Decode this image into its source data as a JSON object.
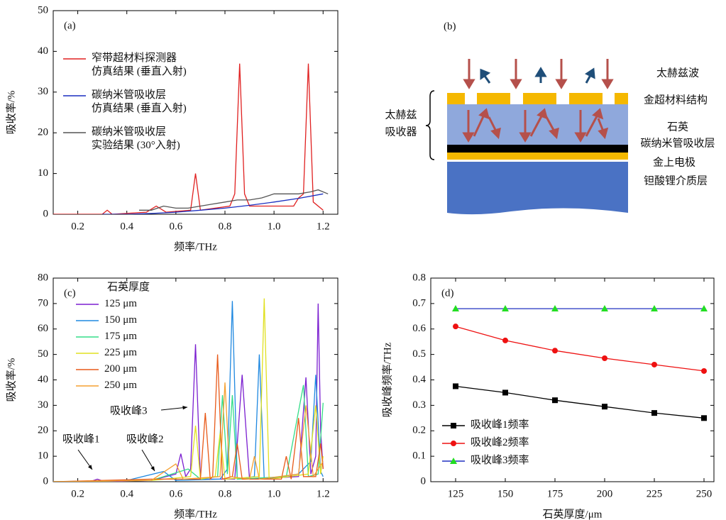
{
  "chart_data": [
    {
      "type": "line",
      "label": "(a)",
      "x_label": "频率/THz",
      "y_label": "吸收率/%",
      "xlim": [
        0.1,
        1.26
      ],
      "ylim": [
        0,
        50
      ],
      "xticks": [
        0.2,
        0.4,
        0.6,
        0.8,
        {
          "value": 1,
          "label": "1.0"
        },
        1.2
      ],
      "yticks": [
        0,
        10,
        20,
        30,
        40,
        50
      ],
      "legend": "upper left",
      "series": [
        {
          "name": "窄带超材料探测器\n仿真结果 (垂直入射)",
          "color": "#e02020",
          "x": [
            0.1,
            0.3,
            0.32,
            0.34,
            0.48,
            0.52,
            0.56,
            0.66,
            0.68,
            0.7,
            0.82,
            0.84,
            0.86,
            0.88,
            0.9,
            1.08,
            1.1,
            1.12,
            1.14,
            1.16,
            1.2
          ],
          "values": [
            0,
            0,
            1,
            0,
            0.5,
            2,
            0.5,
            1,
            10,
            1,
            2,
            5,
            37,
            5,
            2,
            2,
            4,
            5,
            37,
            3,
            1
          ]
        },
        {
          "name": "碳纳米管吸收层\n仿真结果 (垂直入射)",
          "color": "#1a2fc0",
          "x": [
            0.3,
            0.4,
            0.5,
            0.6,
            0.7,
            0.8,
            0.9,
            1.0,
            1.1,
            1.2
          ],
          "values": [
            0,
            0,
            0.2,
            0.5,
            1,
            1.5,
            2.2,
            3,
            3.9,
            5
          ]
        },
        {
          "name": "碳纳米管吸收层\n实验结果 (30°入射)",
          "color": "#555555",
          "x": [
            0.45,
            0.5,
            0.55,
            0.6,
            0.65,
            0.7,
            0.75,
            0.8,
            0.85,
            0.9,
            0.95,
            1.0,
            1.05,
            1.1,
            1.15,
            1.18,
            1.22
          ],
          "values": [
            1,
            1,
            2,
            1.5,
            1.5,
            2,
            2.5,
            3,
            3.5,
            3.5,
            4,
            5,
            5,
            5,
            5.5,
            6,
            5
          ]
        }
      ]
    },
    {
      "type": "line",
      "label": "(c)",
      "x_label": "频率/THz",
      "y_label": "吸收率/%",
      "xlim": [
        0.1,
        1.26
      ],
      "ylim": [
        0,
        80
      ],
      "xticks": [
        0.2,
        0.4,
        0.6,
        0.8,
        {
          "value": 1,
          "label": "1.0"
        },
        1.2
      ],
      "yticks": [
        0,
        10,
        20,
        30,
        40,
        50,
        60,
        70,
        80
      ],
      "legend": "upper left",
      "legend_title": "石英厚度",
      "annotations": [
        "吸收峰1",
        "吸收峰2",
        "吸收峰3"
      ],
      "series": [
        {
          "name": "125 μm",
          "color": "#7b1fd0",
          "x": [
            0.1,
            0.25,
            0.28,
            0.31,
            0.5,
            0.6,
            0.62,
            0.64,
            0.66,
            0.68,
            0.7,
            0.84,
            0.87,
            0.9,
            1.1,
            1.13,
            1.15,
            1.17,
            1.18,
            1.19,
            1.2
          ],
          "values": [
            0,
            0,
            1,
            0,
            0.5,
            3,
            11,
            2,
            5,
            54,
            1,
            1,
            42,
            1,
            2,
            41,
            3,
            10,
            70,
            20,
            5
          ]
        },
        {
          "name": "150 μm",
          "color": "#1f88e0",
          "x": [
            0.1,
            0.4,
            0.55,
            0.6,
            0.78,
            0.81,
            0.83,
            0.85,
            0.92,
            0.94,
            0.96,
            1.1,
            1.15,
            1.17,
            1.19,
            1.2
          ],
          "values": [
            0,
            0.5,
            4,
            0.5,
            1,
            5,
            71,
            1,
            2,
            50,
            1,
            3,
            8,
            42,
            4,
            2
          ]
        },
        {
          "name": "175 μm",
          "color": "#33dd88",
          "x": [
            0.1,
            0.5,
            0.65,
            0.7,
            0.77,
            0.79,
            0.81,
            0.83,
            0.85,
            1.05,
            1.12,
            1.14,
            1.18,
            1.2
          ],
          "values": [
            0,
            0.5,
            5,
            1,
            2,
            34,
            3,
            34,
            1,
            2,
            38,
            2,
            3,
            31
          ]
        },
        {
          "name": "225 μm",
          "color": "#e0e020",
          "x": [
            0.1,
            0.5,
            0.66,
            0.68,
            0.7,
            0.76,
            0.78,
            0.8,
            0.94,
            0.96,
            0.98,
            1.14,
            1.17,
            1.19,
            1.2
          ],
          "values": [
            0,
            0.5,
            2,
            22,
            1,
            2,
            19,
            1,
            2,
            72,
            1,
            3,
            30,
            3,
            10
          ]
        },
        {
          "name": "200 μm",
          "color": "#e85a1a",
          "x": [
            0.1,
            0.5,
            0.7,
            0.72,
            0.74,
            0.75,
            0.77,
            0.79,
            0.83,
            0.85,
            0.87,
            1.03,
            1.05,
            1.07,
            1.1,
            1.12,
            1.17,
            1.19,
            1.2
          ],
          "values": [
            0,
            1,
            1,
            27,
            1,
            2,
            50,
            1,
            2,
            15,
            1,
            1,
            10,
            1,
            25,
            2,
            2,
            15,
            5
          ]
        },
        {
          "name": "250 μm",
          "color": "#f5a030",
          "x": [
            0.1,
            0.5,
            0.6,
            0.63,
            0.78,
            0.8,
            0.82,
            0.9,
            0.92,
            0.94,
            1.1,
            1.13,
            1.16,
            1.2
          ],
          "values": [
            0,
            0.5,
            7,
            1,
            2,
            39,
            2,
            1,
            10,
            1,
            3,
            30,
            2,
            8
          ]
        }
      ]
    },
    {
      "type": "line",
      "label": "(d)",
      "x_label": "石英厚度/μm",
      "y_label": "吸收峰频率/THz",
      "xlim": [
        112.5,
        255
      ],
      "ylim": [
        0,
        0.8
      ],
      "xticks": [
        125,
        150,
        175,
        200,
        225,
        250
      ],
      "yticks": [
        0,
        0.1,
        0.2,
        0.3,
        0.4,
        0.5,
        0.6,
        0.7,
        0.8
      ],
      "legend": "lower left",
      "series": [
        {
          "name": "吸收峰1频率",
          "color": "#000000",
          "marker": "square",
          "marker_color": "#000000",
          "x": [
            125,
            150,
            175,
            200,
            225,
            250
          ],
          "values": [
            0.375,
            0.35,
            0.32,
            0.295,
            0.27,
            0.25
          ]
        },
        {
          "name": "吸收峰2频率",
          "color": "#ee1111",
          "marker": "circle",
          "marker_color": "#ee1111",
          "x": [
            125,
            150,
            175,
            200,
            225,
            250
          ],
          "values": [
            0.61,
            0.555,
            0.515,
            0.485,
            0.46,
            0.435
          ]
        },
        {
          "name": "吸收峰3频率",
          "color": "#2030c0",
          "marker": "triangle",
          "marker_color": "#22dd22",
          "x": [
            125,
            150,
            175,
            200,
            225,
            250
          ],
          "values": [
            0.68,
            0.68,
            0.68,
            0.68,
            0.68,
            0.68
          ]
        }
      ]
    }
  ],
  "diagram": {
    "label": "(b)",
    "wave": "太赫兹波",
    "gold_structure": "金超材料结构",
    "absorber": [
      "太赫兹",
      "吸收器"
    ],
    "quartz": "石英",
    "cnt": "碳纳米管吸收层",
    "electrode": "金上电极",
    "substrate": "钽酸锂介质层"
  }
}
